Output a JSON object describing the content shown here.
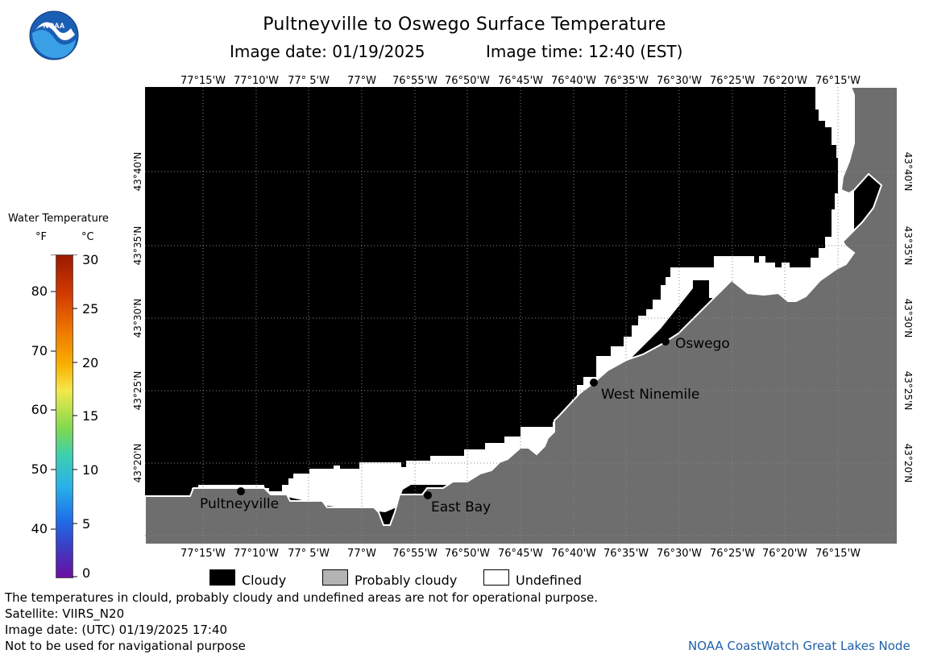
{
  "header": {
    "title": "Pultneyville to Oswego Surface Temperature",
    "image_date": "Image date: 01/19/2025",
    "image_time": "Image time: 12:40 (EST)"
  },
  "logo": {
    "text": "NOAA"
  },
  "map": {
    "lon_labels": [
      "77°15'W",
      "77°10'W",
      "77° 5'W",
      "77°W",
      "76°55'W",
      "76°50'W",
      "76°45'W",
      "76°40'W",
      "76°35'W",
      "76°30'W",
      "76°25'W",
      "76°20'W",
      "76°15'W"
    ],
    "lat_labels": [
      "43°40'N",
      "43°35'N",
      "43°30'N",
      "43°25'N",
      "43°20'N"
    ],
    "places": [
      {
        "name": "Oswego"
      },
      {
        "name": "West Ninemile"
      },
      {
        "name": "Pultneyville"
      },
      {
        "name": "East Bay"
      }
    ],
    "colors": {
      "cloudy": "#000000",
      "land": "#6e6e6e",
      "undefined": "#ffffff"
    }
  },
  "legend": {
    "title": "Water Temperature",
    "unit_f": "°F",
    "unit_c": "°C",
    "f_ticks": [
      "80",
      "70",
      "60",
      "50",
      "40"
    ],
    "c_ticks": [
      "30",
      "25",
      "20",
      "15",
      "10",
      "5",
      "0"
    ]
  },
  "key": [
    {
      "label": "Cloudy",
      "color": "#000000"
    },
    {
      "label": "Probably cloudy",
      "color": "#b4b4b4"
    },
    {
      "label": "Undefined",
      "color": "#ffffff"
    }
  ],
  "footer": {
    "note": "The temperatures in clould, probably cloudy and undefined areas are not for operational purpose.",
    "satellite": "Satellite: VIIRS_N20",
    "utc_date": "Image date: (UTC) 01/19/2025  17:40",
    "nav_warning": "Not to be used for navigational purpose",
    "credit": "NOAA CoastWatch Great Lakes Node"
  }
}
